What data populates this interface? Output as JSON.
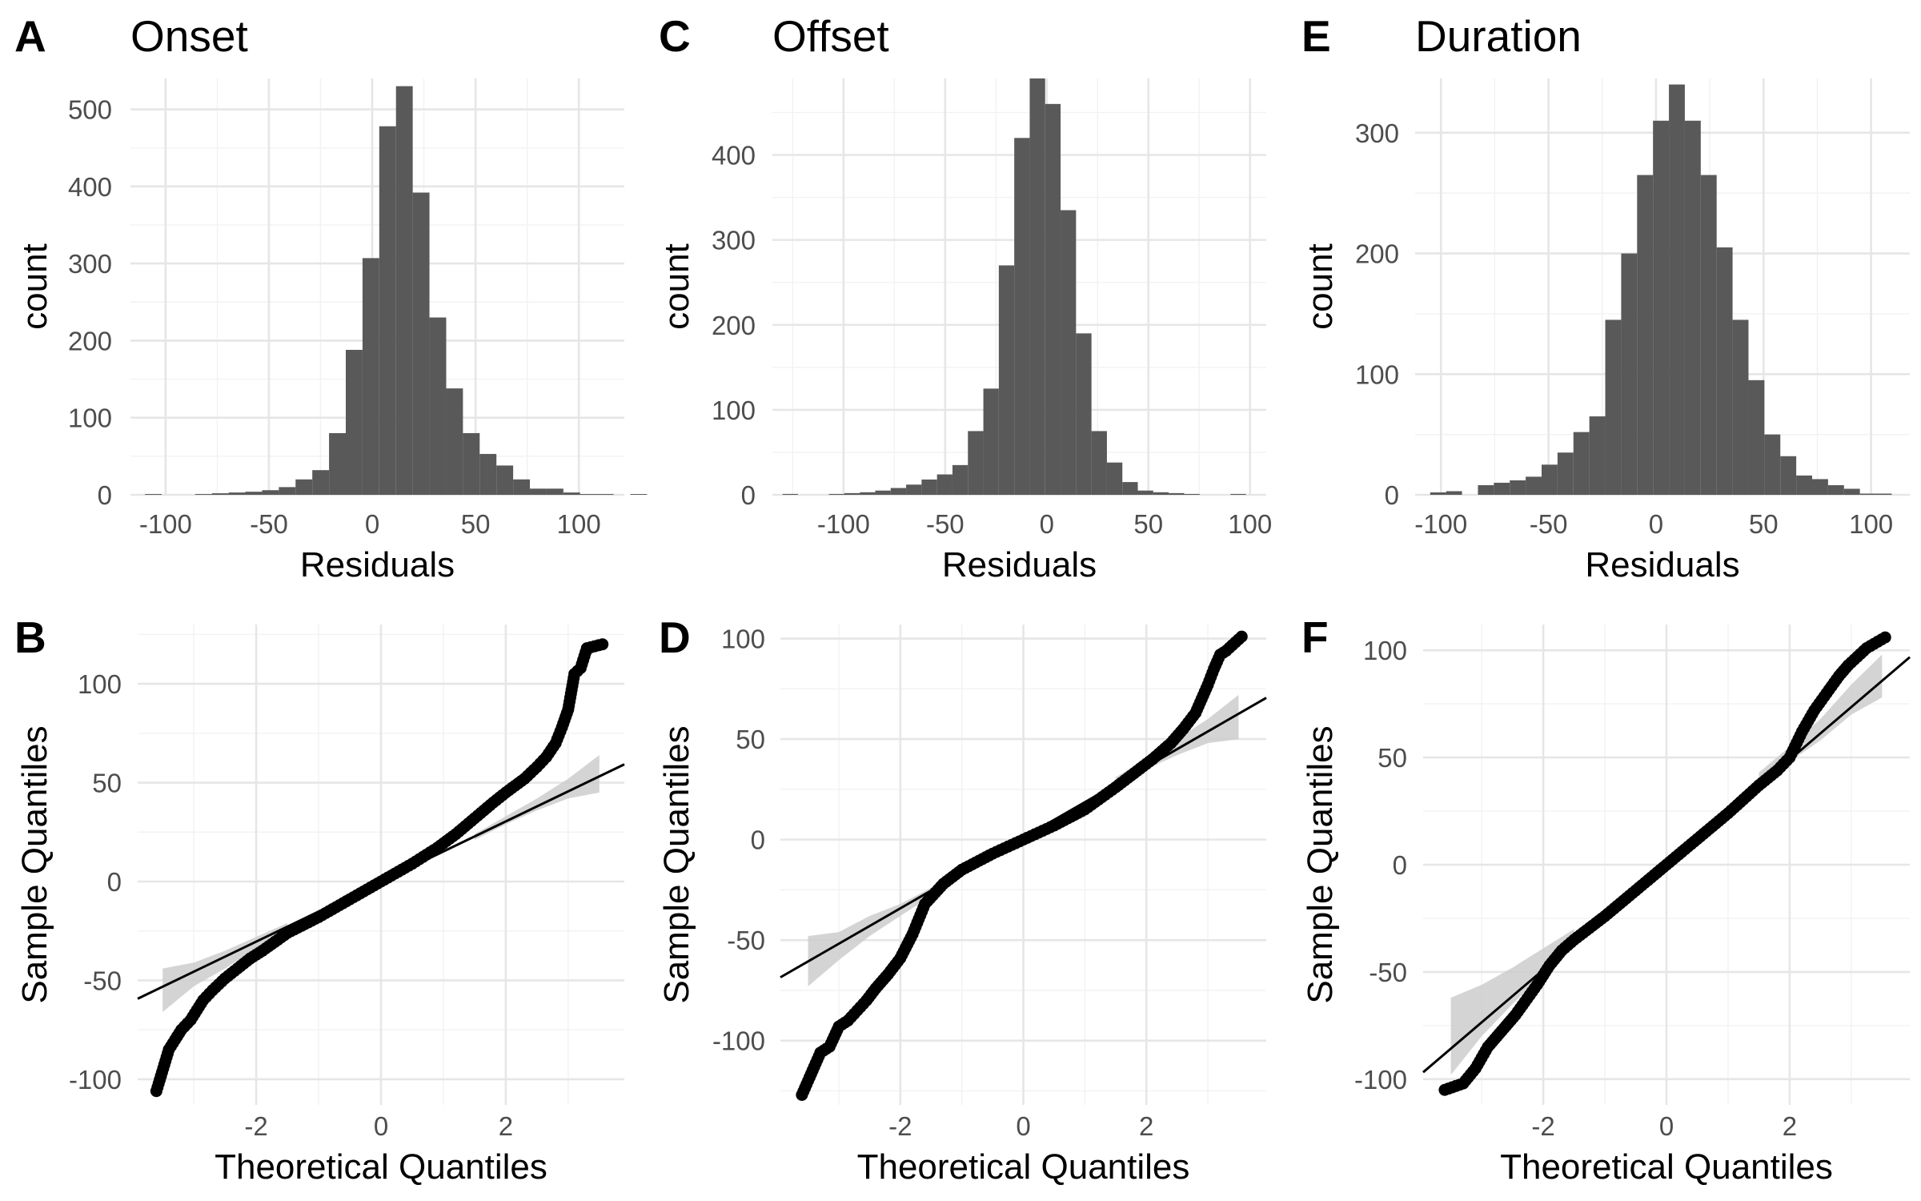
{
  "chart_data": [
    {
      "id": "A",
      "tag": "A",
      "type": "bar",
      "title": "Onset",
      "xlabel": "Residuals",
      "ylabel": "count",
      "xlim": [
        -117,
        122
      ],
      "ylim": [
        0,
        540
      ],
      "xticks": [
        -100,
        -50,
        0,
        50,
        100
      ],
      "yticks": [
        0,
        100,
        200,
        300,
        400,
        500
      ],
      "bins": {
        "start": -110,
        "width": 8.1,
        "counts": [
          1,
          0,
          0,
          1,
          2,
          3,
          4,
          6,
          10,
          20,
          32,
          80,
          188,
          307,
          478,
          530,
          392,
          230,
          138,
          80,
          53,
          38,
          20,
          8,
          8,
          3,
          1,
          1,
          0,
          1
        ]
      }
    },
    {
      "id": "C",
      "tag": "C",
      "type": "bar",
      "title": "Offset",
      "xlabel": "Residuals",
      "ylabel": "count",
      "xlim": [
        -135,
        108
      ],
      "ylim": [
        0,
        490
      ],
      "xticks": [
        -100,
        -50,
        0,
        50,
        100
      ],
      "yticks": [
        0,
        100,
        200,
        300,
        400
      ],
      "bins": {
        "start": -130,
        "width": 7.6,
        "counts": [
          1,
          0,
          0,
          1,
          2,
          3,
          5,
          8,
          12,
          18,
          24,
          35,
          75,
          125,
          270,
          420,
          490,
          460,
          335,
          190,
          75,
          38,
          15,
          5,
          3,
          2,
          1,
          0,
          0,
          1
        ]
      }
    },
    {
      "id": "E",
      "tag": "E",
      "type": "bar",
      "title": "Duration",
      "xlabel": "Residuals",
      "ylabel": "count",
      "xlim": [
        -112,
        118
      ],
      "ylim": [
        0,
        345
      ],
      "xticks": [
        -100,
        -50,
        0,
        50,
        100
      ],
      "yticks": [
        0,
        100,
        200,
        300
      ],
      "bins": {
        "start": -105,
        "width": 7.4,
        "counts": [
          2,
          3,
          0,
          8,
          10,
          12,
          15,
          25,
          35,
          52,
          65,
          145,
          200,
          265,
          310,
          340,
          310,
          265,
          205,
          145,
          95,
          50,
          32,
          16,
          13,
          8,
          5,
          1,
          1,
          0
        ]
      }
    },
    {
      "id": "B",
      "tag": "B",
      "type": "scatter",
      "xlabel": "Theoretical Quantiles",
      "ylabel": "Sample Quantiles",
      "xlim": [
        -3.9,
        3.9
      ],
      "ylim": [
        -113,
        130
      ],
      "xticks": [
        -2,
        0,
        2
      ],
      "yticks": [
        -100,
        -50,
        0,
        50,
        100
      ],
      "line": {
        "slope": 15.2,
        "intercept": 0
      },
      "band": {
        "x": [
          -3.5,
          -3,
          -2.5,
          -2,
          -1.5,
          1.5,
          2,
          2.5,
          3,
          3.5
        ],
        "lo": [
          -66,
          -53,
          -44,
          -34,
          -24,
          21,
          29,
          36,
          42,
          45
        ],
        "hi": [
          -44,
          -41,
          -35,
          -28,
          -21,
          24,
          33,
          42,
          52,
          64
        ]
      },
      "quantiles": {
        "q": [
          -3.6,
          -3.4,
          -3.2,
          -3.05,
          -2.95,
          -2.85,
          -2.7,
          -2.5,
          -2.3,
          -2.1,
          -1.9,
          -1.5,
          -1.0,
          -0.5,
          0,
          0.5,
          0.9,
          1.2,
          1.5,
          1.8,
          2.0,
          2.3,
          2.5,
          2.65,
          2.8,
          2.9,
          3.0,
          3.1,
          3.2,
          3.3,
          3.55
        ],
        "y": [
          -106,
          -85,
          -75,
          -70,
          -65,
          -60,
          -55,
          -49,
          -44,
          -39,
          -35,
          -26,
          -18,
          -9,
          0,
          9,
          17,
          24,
          32,
          40,
          45,
          52,
          58,
          63,
          70,
          78,
          87,
          105,
          108,
          118,
          120
        ]
      }
    },
    {
      "id": "D",
      "tag": "D",
      "type": "scatter",
      "xlabel": "Theoretical Quantiles",
      "ylabel": "Sample Quantiles",
      "xlim": [
        -3.95,
        3.95
      ],
      "ylim": [
        -132,
        107
      ],
      "xticks": [
        -2,
        0,
        2
      ],
      "yticks": [
        -100,
        50,
        0,
        -50,
        100
      ],
      "line": {
        "slope": 17.6,
        "intercept": 1
      },
      "band": {
        "x": [
          -3.5,
          -3,
          -2.5,
          -2,
          -1.5,
          1.5,
          2,
          2.5,
          3,
          3.5
        ],
        "lo": [
          -73,
          -60,
          -48,
          -38,
          -28,
          27,
          35,
          42,
          48,
          50
        ],
        "hi": [
          -48,
          -46,
          -38,
          -32,
          -24,
          31,
          40,
          50,
          60,
          72
        ]
      },
      "quantiles": {
        "q": [
          -3.6,
          -3.3,
          -3.15,
          -3.0,
          -2.85,
          -2.7,
          -2.55,
          -2.4,
          -2.2,
          -2.0,
          -1.8,
          -1.6,
          -1.3,
          -1.0,
          -0.5,
          0,
          0.5,
          1.0,
          1.5,
          1.8,
          2.1,
          2.4,
          2.6,
          2.8,
          2.9,
          3.0,
          3.1,
          3.2,
          3.3,
          3.55
        ],
        "y": [
          -127,
          -106,
          -103,
          -93,
          -90,
          -85,
          -80,
          -74,
          -67,
          -59,
          -47,
          -32,
          -22,
          -15,
          -7,
          0,
          7,
          15,
          26,
          33,
          40,
          48,
          55,
          63,
          70,
          77,
          85,
          92,
          94,
          101
        ]
      }
    },
    {
      "id": "F",
      "tag": "F",
      "type": "scatter",
      "xlabel": "Theoretical Quantiles",
      "ylabel": "Sample Quantiles",
      "xlim": [
        -3.95,
        3.95
      ],
      "ylim": [
        -112,
        112
      ],
      "xticks": [
        -2,
        0,
        2
      ],
      "yticks": [
        -100,
        -50,
        0,
        50,
        100
      ],
      "line": {
        "slope": 24.5,
        "intercept": 0
      },
      "band": {
        "x": [
          -3.5,
          -3,
          -2.5,
          -2,
          -1.5,
          1.5,
          2,
          2.5,
          3,
          3.5
        ],
        "lo": [
          -98,
          -80,
          -65,
          -51,
          -38,
          36,
          48,
          58,
          70,
          78
        ],
        "hi": [
          -62,
          -56,
          -48,
          -39,
          -30,
          43,
          55,
          68,
          84,
          98
        ]
      },
      "quantiles": {
        "q": [
          -3.6,
          -3.3,
          -3.1,
          -2.9,
          -2.75,
          -2.6,
          -2.45,
          -2.3,
          -2.1,
          -1.9,
          -1.7,
          -1.5,
          -1.0,
          -0.5,
          0,
          0.5,
          1.0,
          1.5,
          1.8,
          2.0,
          2.2,
          2.4,
          2.6,
          2.8,
          2.95,
          3.1,
          3.25,
          3.55
        ],
        "y": [
          -105,
          -102,
          -95,
          -85,
          -80,
          -75,
          -70,
          -64,
          -56,
          -47,
          -40,
          -35,
          -24,
          -12,
          0,
          12,
          24,
          37,
          44,
          50,
          62,
          72,
          80,
          88,
          93,
          97,
          101,
          106
        ]
      }
    }
  ]
}
